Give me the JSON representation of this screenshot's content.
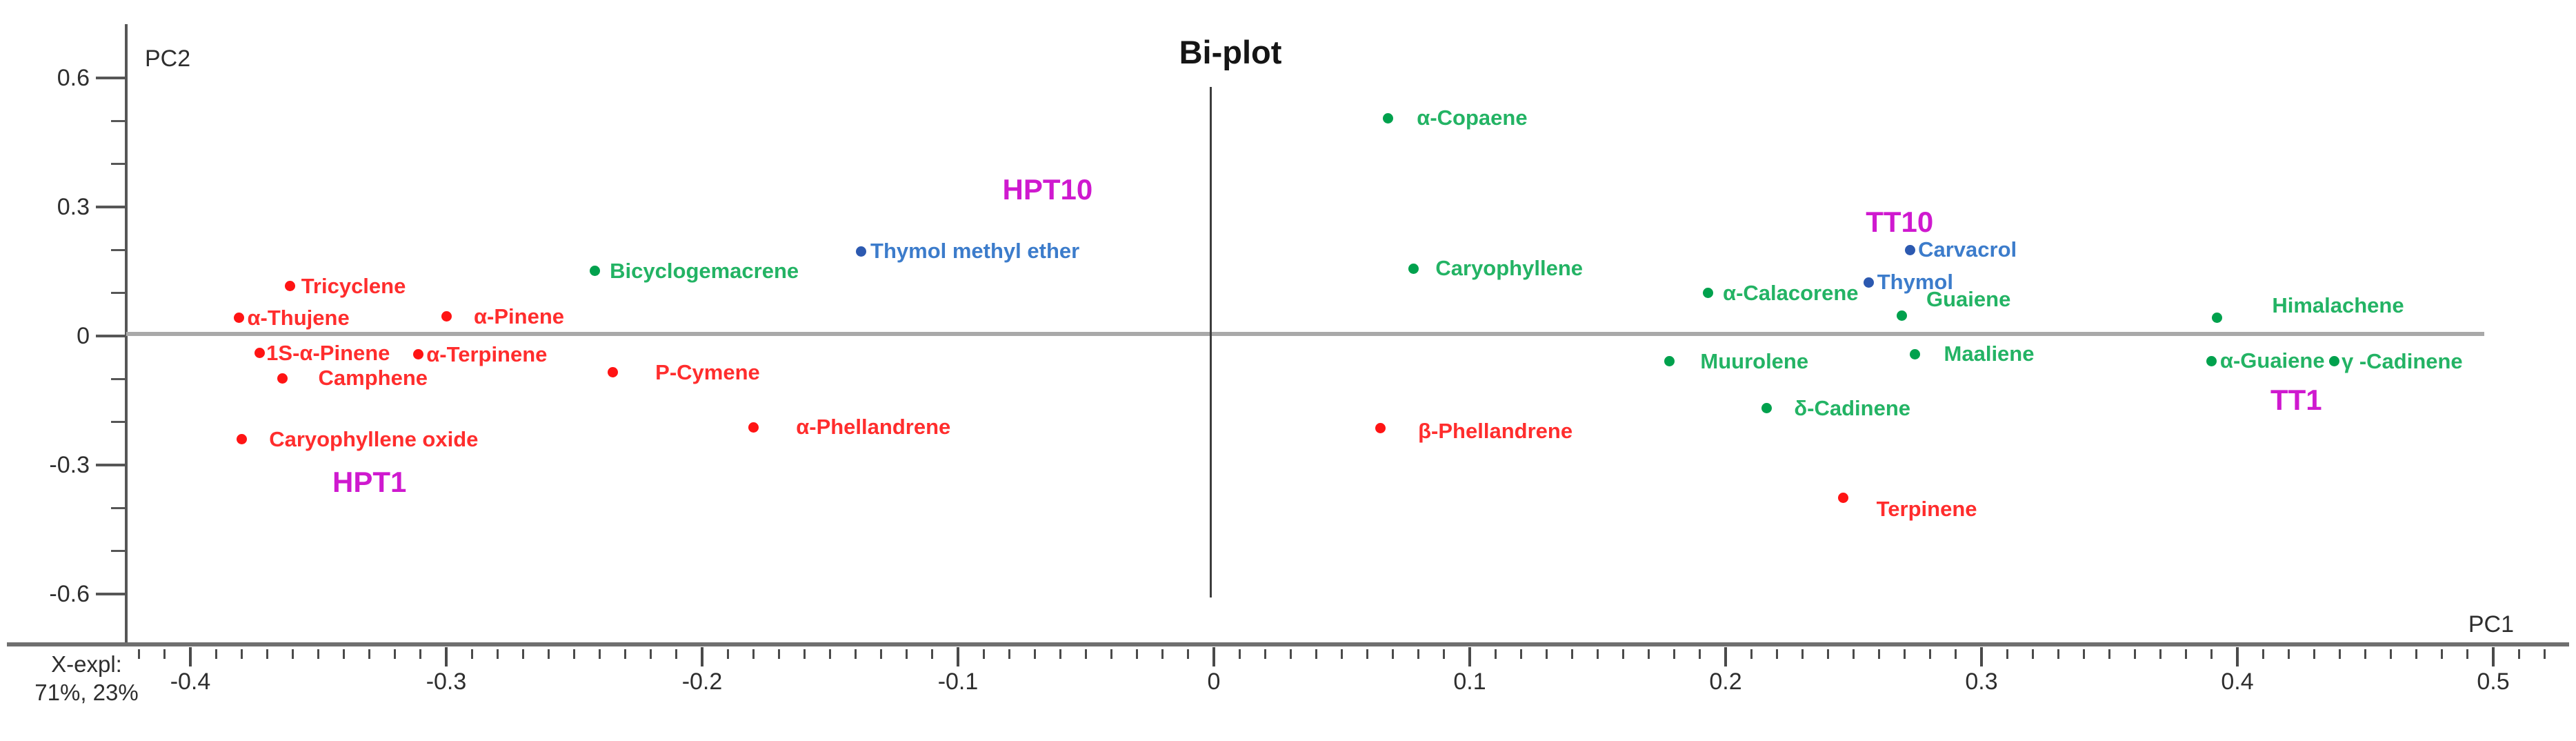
{
  "title": "Bi-plot",
  "axes": {
    "x_label": "PC1",
    "y_label": "PC2",
    "x_major_ticks": [
      -0.4,
      -0.3,
      -0.2,
      -0.1,
      0,
      0.1,
      0.2,
      0.3,
      0.4,
      0.5
    ],
    "x_major_labels": [
      "-0.4",
      "-0.3",
      "-0.2",
      "-0.1",
      "0",
      "0.1",
      "0.2",
      "0.3",
      "0.4",
      "0.5"
    ],
    "y_major_ticks": [
      0.6,
      0.3,
      0,
      -0.3,
      -0.6
    ],
    "y_major_labels": [
      "0.6",
      "0.3",
      "0",
      "-0.3",
      "-0.6"
    ],
    "x_minor_step": 0.01,
    "y_minor_step": 0.1,
    "x_minor_range": [
      -0.42,
      0.52
    ],
    "y_minor_range": [
      -0.6,
      0.6
    ]
  },
  "variance_note": {
    "line1": "X-expl:",
    "line2": "71%, 23%"
  },
  "colors": {
    "red_dot": "#ff1414",
    "red_label": "#ff2d2d",
    "green_dot": "#00a14d",
    "green_label": "#23b364",
    "blue_dot": "#2c59b0",
    "blue_label": "#3c7ccb",
    "magenta": "#cf19cf",
    "title": "#151515",
    "axis_text": "#2e2e2e"
  },
  "chart_data": {
    "type": "scatter",
    "title": "Bi-plot",
    "xlabel": "PC1",
    "ylabel": "PC2",
    "x_explained": "71%",
    "y_explained": "23%",
    "xlim": [
      -0.43,
      0.53
    ],
    "ylim": [
      -0.7,
      0.65
    ],
    "grid": false,
    "series": [
      {
        "name": "red-compounds",
        "color_key": "red",
        "points": [
          {
            "label": "Tricyclene",
            "x": -0.361,
            "y": 0.116,
            "dx": 16,
            "dy": 0
          },
          {
            "label": "α-Thujene",
            "x": -0.381,
            "y": 0.042,
            "dx": 12,
            "dy": 0
          },
          {
            "label": "α-Pinene",
            "x": -0.3,
            "y": 0.045,
            "dx": 40,
            "dy": 0
          },
          {
            "label": "1S-α-Pinene",
            "x": -0.373,
            "y": -0.04,
            "dx": 10,
            "dy": 0
          },
          {
            "label": "α-Terpinene",
            "x": -0.311,
            "y": -0.043,
            "dx": 12,
            "dy": 0
          },
          {
            "label": "Camphene",
            "x": -0.364,
            "y": -0.098,
            "dx": 52,
            "dy": 0
          },
          {
            "label": "Caryophyllene oxide",
            "x": -0.38,
            "y": -0.24,
            "dx": 40,
            "dy": 0
          },
          {
            "label": "P-Cymene",
            "x": -0.235,
            "y": -0.085,
            "dx": 62,
            "dy": 0
          },
          {
            "label": "α-Phellandrene",
            "x": -0.18,
            "y": -0.212,
            "dx": 62,
            "dy": 0
          },
          {
            "label": "β-Phellandrene",
            "x": 0.065,
            "y": -0.215,
            "dx": 55,
            "dy": 4
          },
          {
            "label": "Terpinene",
            "x": 0.246,
            "y": -0.377,
            "dx": 48,
            "dy": 16
          }
        ]
      },
      {
        "name": "green-compounds",
        "color_key": "green",
        "points": [
          {
            "label": "Bicyclogemacrene",
            "x": -0.242,
            "y": 0.151,
            "dx": 22,
            "dy": 0
          },
          {
            "label": "α-Copaene",
            "x": 0.068,
            "y": 0.507,
            "dx": 42,
            "dy": 0
          },
          {
            "label": "Caryophyllene",
            "x": 0.078,
            "y": 0.157,
            "dx": 32,
            "dy": 0
          },
          {
            "label": "α-Calacorene",
            "x": 0.193,
            "y": 0.1,
            "dx": 22,
            "dy": 0
          },
          {
            "label": "Muurolene",
            "x": 0.178,
            "y": -0.059,
            "dx": 45,
            "dy": 0
          },
          {
            "label": "δ-Cadinene",
            "x": 0.216,
            "y": -0.168,
            "dx": 40,
            "dy": 0
          },
          {
            "label": "Guaiene",
            "x": 0.269,
            "y": 0.047,
            "dx": 35,
            "dy": -24
          },
          {
            "label": "Maaliene",
            "x": 0.274,
            "y": -0.042,
            "dx": 42,
            "dy": 0
          },
          {
            "label": "Himalachene",
            "x": 0.392,
            "y": 0.042,
            "dx": 80,
            "dy": -18
          },
          {
            "label": "α-Guaiene",
            "x": 0.39,
            "y": -0.058,
            "dx": 12,
            "dy": 0
          },
          {
            "label": "γ -Cadinene",
            "x": 0.438,
            "y": -0.059,
            "dx": 10,
            "dy": 0
          }
        ]
      },
      {
        "name": "blue-compounds",
        "color_key": "blue",
        "points": [
          {
            "label": "Thymol methyl ether",
            "x": -0.138,
            "y": 0.197,
            "dx": 14,
            "dy": 0
          },
          {
            "label": "Carvacrol",
            "x": 0.272,
            "y": 0.2,
            "dx": 12,
            "dy": 0
          },
          {
            "label": "Thymol",
            "x": 0.256,
            "y": 0.125,
            "dx": 12,
            "dy": 0
          }
        ]
      }
    ],
    "annotations": [
      {
        "label": "HPT10",
        "x": -0.065,
        "y": 0.34
      },
      {
        "label": "HPT1",
        "x": -0.33,
        "y": -0.34
      },
      {
        "label": "TT10",
        "x": 0.268,
        "y": 0.265
      },
      {
        "label": "TT1",
        "x": 0.423,
        "y": -0.149
      }
    ]
  }
}
